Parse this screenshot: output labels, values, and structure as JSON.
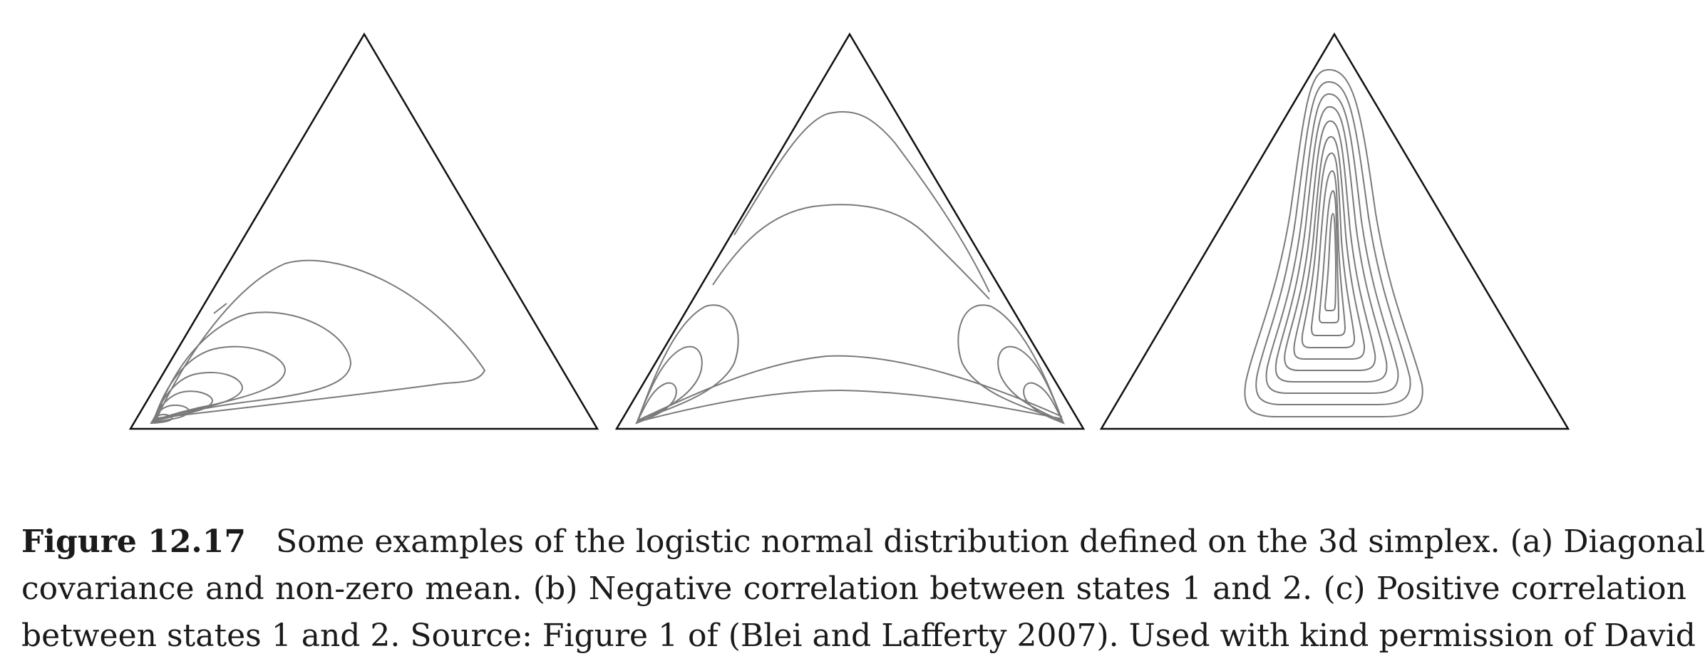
{
  "figure": {
    "panels": [
      {
        "id": "a",
        "description": "Diagonal covariance and non-zero mean"
      },
      {
        "id": "b",
        "description": "Negative correlation between states 1 and 2"
      },
      {
        "id": "c",
        "description": "Positive correlation between states 1 and 2"
      }
    ],
    "colors": {
      "outline": "#111111",
      "contour": "#7a7a7a",
      "text": "#1a1a1a"
    }
  },
  "caption": {
    "label": "Figure 12.17",
    "line1": "Some examples of the logistic normal distribution defined on the 3d simplex. (a) Diagonal",
    "line2": "covariance and non-zero mean. (b) Negative correlation between states 1 and 2. (c) Positive correlation",
    "line3": "between states 1 and 2. Source: Figure 1 of (Blei and Lafferty 2007). Used with kind permission of David"
  }
}
